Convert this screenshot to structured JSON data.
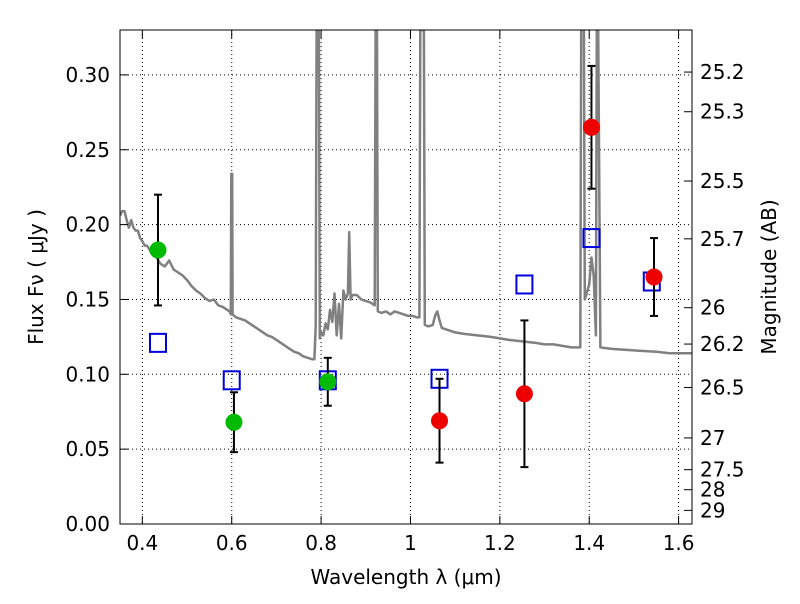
{
  "chart_data": {
    "type": "scatter",
    "xlabel": "Wavelength  λ (μm)",
    "ylabel": "Flux  Fν  ( μJy )",
    "y2label": "Magnitude (AB)",
    "xlim": [
      0.35,
      1.63
    ],
    "ylim": [
      0.0,
      0.33
    ],
    "xticks": [
      0.4,
      0.6,
      0.8,
      1.0,
      1.2,
      1.4,
      1.6
    ],
    "xtick_labels": [
      "0.4",
      "0.6",
      "0.8",
      "1",
      "1.2",
      "1.4",
      "1.6"
    ],
    "yticks": [
      0.0,
      0.05,
      0.1,
      0.15,
      0.2,
      0.25,
      0.3
    ],
    "ytick_labels": [
      "0.00",
      "0.05",
      "0.10",
      "0.15",
      "0.20",
      "0.25",
      "0.30"
    ],
    "y2ticks": [
      {
        "label": "25.2",
        "flux": 0.3019
      },
      {
        "label": "25.3",
        "flux": 0.2754
      },
      {
        "label": "25.5",
        "flux": 0.2291
      },
      {
        "label": "25.7",
        "flux": 0.1905
      },
      {
        "label": "26",
        "flux": 0.1445
      },
      {
        "label": "26.2",
        "flux": 0.1202
      },
      {
        "label": "26.5",
        "flux": 0.0912
      },
      {
        "label": "27",
        "flux": 0.0575
      },
      {
        "label": "27.5",
        "flux": 0.0363
      },
      {
        "label": "28",
        "flux": 0.0229
      },
      {
        "label": "29",
        "flux": 0.0091
      }
    ],
    "grid": true,
    "series": [
      {
        "kind": "line",
        "color": "#808080",
        "points": [
          [
            0.35,
            0.206
          ],
          [
            0.355,
            0.209
          ],
          [
            0.36,
            0.209
          ],
          [
            0.365,
            0.203
          ],
          [
            0.37,
            0.198
          ],
          [
            0.375,
            0.203
          ],
          [
            0.38,
            0.198
          ],
          [
            0.385,
            0.196
          ],
          [
            0.39,
            0.196
          ],
          [
            0.395,
            0.191
          ],
          [
            0.4,
            0.189
          ],
          [
            0.405,
            0.186
          ],
          [
            0.41,
            0.186
          ],
          [
            0.415,
            0.184
          ],
          [
            0.42,
            0.181
          ],
          [
            0.43,
            0.179
          ],
          [
            0.44,
            0.174
          ],
          [
            0.45,
            0.172
          ],
          [
            0.46,
            0.176
          ],
          [
            0.47,
            0.17
          ],
          [
            0.48,
            0.168
          ],
          [
            0.49,
            0.166
          ],
          [
            0.5,
            0.163
          ],
          [
            0.51,
            0.159
          ],
          [
            0.52,
            0.156
          ],
          [
            0.53,
            0.154
          ],
          [
            0.54,
            0.151
          ],
          [
            0.55,
            0.149
          ],
          [
            0.56,
            0.15
          ],
          [
            0.57,
            0.146
          ],
          [
            0.58,
            0.145
          ],
          [
            0.59,
            0.143
          ],
          [
            0.595,
            0.142
          ],
          [
            0.598,
            0.14
          ],
          [
            0.599,
            0.234
          ],
          [
            0.601,
            0.234
          ],
          [
            0.602,
            0.14
          ],
          [
            0.61,
            0.138
          ],
          [
            0.62,
            0.137
          ],
          [
            0.63,
            0.136
          ],
          [
            0.64,
            0.134
          ],
          [
            0.65,
            0.132
          ],
          [
            0.66,
            0.13
          ],
          [
            0.67,
            0.128
          ],
          [
            0.68,
            0.126
          ],
          [
            0.69,
            0.125
          ],
          [
            0.7,
            0.123
          ],
          [
            0.71,
            0.121
          ],
          [
            0.72,
            0.119
          ],
          [
            0.73,
            0.117
          ],
          [
            0.74,
            0.115
          ],
          [
            0.75,
            0.114
          ],
          [
            0.76,
            0.112
          ],
          [
            0.77,
            0.111
          ],
          [
            0.78,
            0.11
          ],
          [
            0.785,
            0.11
          ],
          [
            0.788,
            0.132
          ],
          [
            0.79,
            0.33
          ],
          [
            0.795,
            0.33
          ],
          [
            0.797,
            0.124
          ],
          [
            0.8,
            0.128
          ],
          [
            0.805,
            0.126
          ],
          [
            0.81,
            0.134
          ],
          [
            0.815,
            0.13
          ],
          [
            0.82,
            0.143
          ],
          [
            0.825,
            0.135
          ],
          [
            0.83,
            0.154
          ],
          [
            0.835,
            0.126
          ],
          [
            0.84,
            0.147
          ],
          [
            0.845,
            0.124
          ],
          [
            0.85,
            0.156
          ],
          [
            0.855,
            0.15
          ],
          [
            0.86,
            0.154
          ],
          [
            0.863,
            0.195
          ],
          [
            0.866,
            0.15
          ],
          [
            0.87,
            0.153
          ],
          [
            0.88,
            0.153
          ],
          [
            0.89,
            0.15
          ],
          [
            0.9,
            0.149
          ],
          [
            0.91,
            0.148
          ],
          [
            0.915,
            0.147
          ],
          [
            0.92,
            0.146
          ],
          [
            0.922,
            0.33
          ],
          [
            0.925,
            0.33
          ],
          [
            0.927,
            0.142
          ],
          [
            0.935,
            0.141
          ],
          [
            0.945,
            0.142
          ],
          [
            0.955,
            0.14
          ],
          [
            0.965,
            0.142
          ],
          [
            0.975,
            0.141
          ],
          [
            0.985,
            0.14
          ],
          [
            0.995,
            0.139
          ],
          [
            1.005,
            0.139
          ],
          [
            1.015,
            0.138
          ],
          [
            1.02,
            0.138
          ],
          [
            1.022,
            0.33
          ],
          [
            1.03,
            0.33
          ],
          [
            1.032,
            0.133
          ],
          [
            1.04,
            0.132
          ],
          [
            1.05,
            0.133
          ],
          [
            1.055,
            0.139
          ],
          [
            1.06,
            0.142
          ],
          [
            1.065,
            0.136
          ],
          [
            1.07,
            0.131
          ],
          [
            1.08,
            0.13
          ],
          [
            1.09,
            0.129
          ],
          [
            1.1,
            0.128
          ],
          [
            1.12,
            0.127
          ],
          [
            1.15,
            0.126
          ],
          [
            1.18,
            0.125
          ],
          [
            1.2,
            0.124
          ],
          [
            1.22,
            0.123
          ],
          [
            1.25,
            0.122
          ],
          [
            1.28,
            0.121
          ],
          [
            1.3,
            0.12
          ],
          [
            1.32,
            0.12
          ],
          [
            1.34,
            0.119
          ],
          [
            1.36,
            0.118
          ],
          [
            1.38,
            0.118
          ],
          [
            1.382,
            0.33
          ],
          [
            1.388,
            0.33
          ],
          [
            1.39,
            0.15
          ],
          [
            1.4,
            0.16
          ],
          [
            1.405,
            0.178
          ],
          [
            1.41,
            0.166
          ],
          [
            1.415,
            0.126
          ],
          [
            1.417,
            0.33
          ],
          [
            1.42,
            0.33
          ],
          [
            1.425,
            0.118
          ],
          [
            1.45,
            0.117
          ],
          [
            1.5,
            0.116
          ],
          [
            1.55,
            0.115
          ],
          [
            1.58,
            0.114
          ],
          [
            1.6,
            0.114
          ],
          [
            1.63,
            0.114
          ]
        ]
      },
      {
        "kind": "model",
        "color": "#0000dd",
        "marker": "open-square",
        "points": [
          {
            "x": 0.435,
            "y": 0.121
          },
          {
            "x": 0.6,
            "y": 0.096
          },
          {
            "x": 0.815,
            "y": 0.096
          },
          {
            "x": 1.065,
            "y": 0.097
          },
          {
            "x": 1.255,
            "y": 0.16
          },
          {
            "x": 1.405,
            "y": 0.191
          },
          {
            "x": 1.54,
            "y": 0.162
          }
        ]
      },
      {
        "kind": "observed",
        "color": "#00bb00",
        "marker": "filled-circle",
        "points": [
          {
            "x": 0.435,
            "y": 0.183,
            "err": 0.037
          },
          {
            "x": 0.605,
            "y": 0.068,
            "err": 0.02
          },
          {
            "x": 0.815,
            "y": 0.095,
            "err": 0.016
          }
        ]
      },
      {
        "kind": "observed",
        "color": "#ee0000",
        "marker": "filled-circle",
        "points": [
          {
            "x": 1.065,
            "y": 0.069,
            "err": 0.028
          },
          {
            "x": 1.255,
            "y": 0.087,
            "err": 0.049
          },
          {
            "x": 1.405,
            "y": 0.265,
            "err": 0.041
          },
          {
            "x": 1.545,
            "y": 0.165,
            "err": 0.026
          }
        ]
      }
    ]
  }
}
